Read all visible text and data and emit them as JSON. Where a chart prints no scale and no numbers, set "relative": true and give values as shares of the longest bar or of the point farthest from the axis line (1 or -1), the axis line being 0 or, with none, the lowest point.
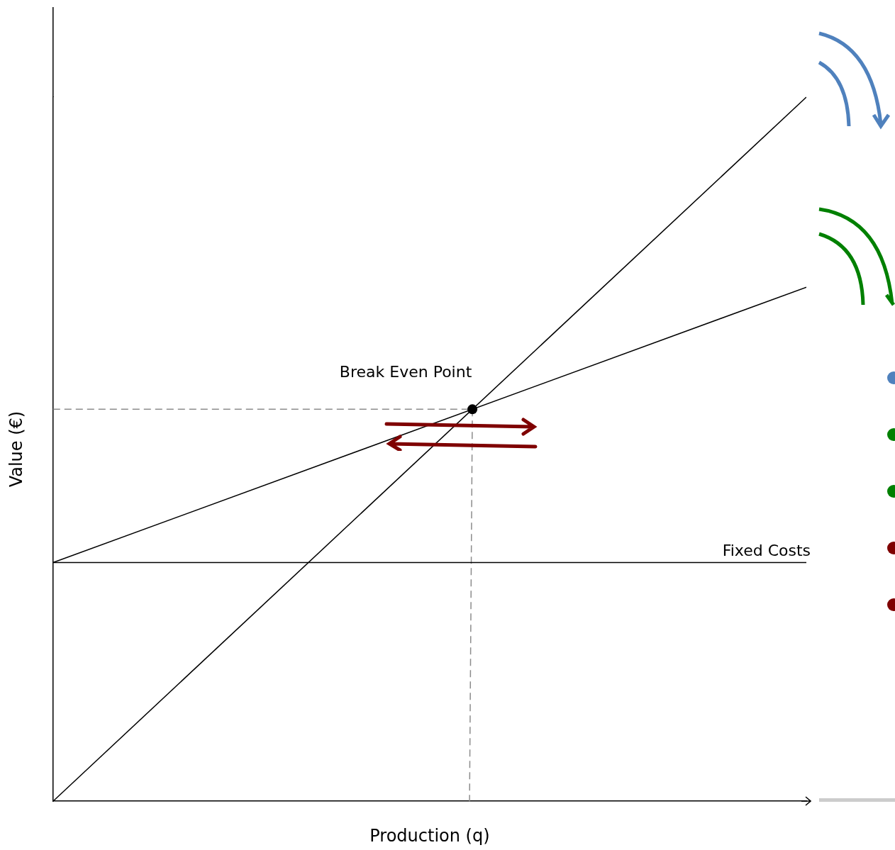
{
  "chart_data": {
    "type": "line",
    "relative": true,
    "xlabel": "Production (q)",
    "ylabel": "Value (€)",
    "categories": [
      null,
      null
    ],
    "legend": false,
    "marker": "none",
    "line_style": "solid",
    "series": [
      {
        "color": "#000000",
        "values": [
          0,
          1
        ]
      },
      {
        "color": "#000000",
        "values": [
          0.339,
          0.73
        ]
      },
      {
        "name": "Fixed Costs",
        "color": "#000000",
        "values": [
          0.339,
          0.339
        ]
      }
    ],
    "annotations": [
      "Break Even Point"
    ]
  }
}
